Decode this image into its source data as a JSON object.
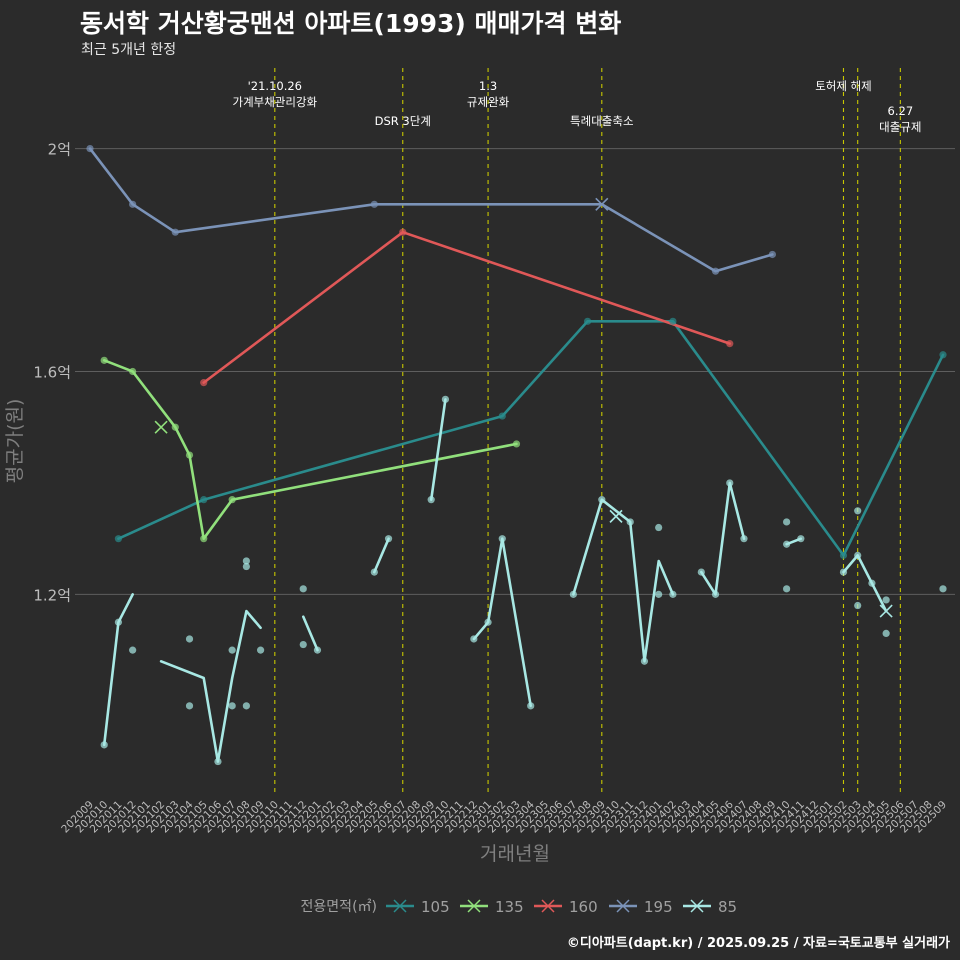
{
  "chart_data": {
    "type": "line",
    "title": "동서학 거산황궁맨션 아파트(1993) 매매가격 변화",
    "subtitle": "최근 5개년 한정",
    "xlabel": "거래년월",
    "ylabel": "평균가(원)",
    "caption": "©디아파트(dapt.kr) / 2025.09.25 / 자료=국토교통부 실거래가",
    "ylim": [
      0.84,
      2.15
    ],
    "y_ticks": [
      {
        "value": 1.2,
        "label": "1.2억"
      },
      {
        "value": 1.6,
        "label": "1.6억"
      },
      {
        "value": 2.0,
        "label": "2억"
      }
    ],
    "categories": [
      "202009",
      "202010",
      "202011",
      "202012",
      "202101",
      "202102",
      "202103",
      "202104",
      "202105",
      "202106",
      "202107",
      "202108",
      "202109",
      "202110",
      "202111",
      "202112",
      "202201",
      "202202",
      "202203",
      "202204",
      "202205",
      "202206",
      "202207",
      "202208",
      "202209",
      "202210",
      "202211",
      "202212",
      "202301",
      "202302",
      "202303",
      "202304",
      "202305",
      "202306",
      "202307",
      "202308",
      "202309",
      "202310",
      "202311",
      "202312",
      "202401",
      "202402",
      "202403",
      "202404",
      "202405",
      "202406",
      "202407",
      "202408",
      "202409",
      "202410",
      "202411",
      "202412",
      "202501",
      "202502",
      "202503",
      "202504",
      "202505",
      "202506",
      "202507",
      "202508",
      "202509"
    ],
    "legend_title": "전용면적(㎡)",
    "series": [
      {
        "name": "105",
        "color": "#2a8b8c",
        "line_segments": [
          [
            [
              "202011",
              1.3
            ],
            [
              "202105",
              1.37
            ],
            [
              "202302",
              1.52
            ],
            [
              "202308",
              1.69
            ],
            [
              "202402",
              1.69
            ],
            [
              "202502",
              1.27
            ],
            [
              "202509",
              1.63
            ]
          ]
        ],
        "points": [
          [
            "202011",
            1.3
          ],
          [
            "202105",
            1.37
          ],
          [
            "202302",
            1.52
          ],
          [
            "202308",
            1.69
          ],
          [
            "202402",
            1.69
          ],
          [
            "202502",
            1.27
          ],
          [
            "202509",
            1.63
          ]
        ],
        "markers": []
      },
      {
        "name": "135",
        "color": "#91e07c",
        "line_segments": [
          [
            [
              "202010",
              1.62
            ],
            [
              "202012",
              1.6
            ],
            [
              "202103",
              1.5
            ],
            [
              "202104",
              1.45
            ],
            [
              "202105",
              1.3
            ],
            [
              "202107",
              1.37
            ],
            [
              "202303",
              1.47
            ]
          ]
        ],
        "points": [
          [
            "202010",
            1.62
          ],
          [
            "202012",
            1.6
          ],
          [
            "202103",
            1.5
          ],
          [
            "202104",
            1.45
          ],
          [
            "202105",
            1.3
          ],
          [
            "202107",
            1.37
          ],
          [
            "202303",
            1.47
          ]
        ],
        "markers": [
          [
            "202102",
            1.5
          ]
        ]
      },
      {
        "name": "160",
        "color": "#e05858",
        "line_segments": [
          [
            [
              "202105",
              1.58
            ],
            [
              "202207",
              1.85
            ],
            [
              "202406",
              1.65
            ]
          ]
        ],
        "points": [
          [
            "202105",
            1.58
          ],
          [
            "202207",
            1.85
          ],
          [
            "202406",
            1.65
          ]
        ],
        "markers": []
      },
      {
        "name": "195",
        "color": "#7b93b8",
        "line_segments": [
          [
            [
              "202009",
              2.0
            ],
            [
              "202012",
              1.9
            ],
            [
              "202103",
              1.85
            ],
            [
              "202205",
              1.9
            ],
            [
              "202309",
              1.9
            ],
            [
              "202405",
              1.78
            ],
            [
              "202409",
              1.81
            ]
          ]
        ],
        "points": [
          [
            "202009",
            2.0
          ],
          [
            "202012",
            1.9
          ],
          [
            "202103",
            1.85
          ],
          [
            "202205",
            1.9
          ],
          [
            "202405",
            1.78
          ],
          [
            "202409",
            1.81
          ]
        ],
        "markers": [
          [
            "202309",
            1.9
          ]
        ]
      },
      {
        "name": "85",
        "color": "#a8e8e4",
        "line_segments": [
          [
            [
              "202010",
              0.93
            ],
            [
              "202011",
              1.15
            ],
            [
              "202012",
              1.2
            ]
          ],
          [
            [
              "202102",
              1.08
            ],
            [
              "202105",
              1.05
            ],
            [
              "202106",
              0.9
            ],
            [
              "202107",
              1.05
            ],
            [
              "202108",
              1.17
            ],
            [
              "202109",
              1.14
            ]
          ],
          [
            [
              "202112",
              1.16
            ],
            [
              "202201",
              1.1
            ]
          ],
          [
            [
              "202205",
              1.24
            ],
            [
              "202206",
              1.3
            ]
          ],
          [
            [
              "202209",
              1.37
            ],
            [
              "202210",
              1.55
            ]
          ],
          [
            [
              "202212",
              1.12
            ],
            [
              "202301",
              1.15
            ],
            [
              "202302",
              1.3
            ],
            [
              "202304",
              1.0
            ]
          ],
          [
            [
              "202307",
              1.2
            ],
            [
              "202309",
              1.37
            ],
            [
              "202311",
              1.33
            ],
            [
              "202312",
              1.08
            ],
            [
              "202401",
              1.26
            ],
            [
              "202402",
              1.2
            ]
          ],
          [
            [
              "202404",
              1.24
            ],
            [
              "202405",
              1.2
            ],
            [
              "202406",
              1.4
            ],
            [
              "202407",
              1.3
            ]
          ],
          [
            [
              "202410",
              1.29
            ],
            [
              "202411",
              1.3
            ]
          ],
          [
            [
              "202502",
              1.24
            ],
            [
              "202503",
              1.27
            ],
            [
              "202504",
              1.22
            ],
            [
              "202505",
              1.17
            ]
          ]
        ],
        "points": [
          [
            "202010",
            0.93
          ],
          [
            "202011",
            1.15
          ],
          [
            "202012",
            1.1
          ],
          [
            "202104",
            1.12
          ],
          [
            "202104",
            1.0
          ],
          [
            "202106",
            0.9
          ],
          [
            "202107",
            1.1
          ],
          [
            "202107",
            1.0
          ],
          [
            "202108",
            1.26
          ],
          [
            "202108",
            1.25
          ],
          [
            "202108",
            1.0
          ],
          [
            "202109",
            1.1
          ],
          [
            "202112",
            1.21
          ],
          [
            "202112",
            1.11
          ],
          [
            "202201",
            1.1
          ],
          [
            "202205",
            1.24
          ],
          [
            "202206",
            1.3
          ],
          [
            "202209",
            1.37
          ],
          [
            "202210",
            1.55
          ],
          [
            "202212",
            1.12
          ],
          [
            "202301",
            1.15
          ],
          [
            "202302",
            1.3
          ],
          [
            "202304",
            1.0
          ],
          [
            "202307",
            1.2
          ],
          [
            "202309",
            1.37
          ],
          [
            "202311",
            1.33
          ],
          [
            "202312",
            1.08
          ],
          [
            "202401",
            1.32
          ],
          [
            "202401",
            1.2
          ],
          [
            "202402",
            1.2
          ],
          [
            "202404",
            1.24
          ],
          [
            "202405",
            1.2
          ],
          [
            "202406",
            1.4
          ],
          [
            "202407",
            1.3
          ],
          [
            "202410",
            1.33
          ],
          [
            "202410",
            1.29
          ],
          [
            "202410",
            1.21
          ],
          [
            "202411",
            1.3
          ],
          [
            "202502",
            1.24
          ],
          [
            "202503",
            1.35
          ],
          [
            "202503",
            1.27
          ],
          [
            "202503",
            1.18
          ],
          [
            "202504",
            1.22
          ],
          [
            "202505",
            1.19
          ],
          [
            "202505",
            1.13
          ],
          [
            "202509",
            1.21
          ]
        ],
        "markers": [
          [
            "202310",
            1.34
          ],
          [
            "202505",
            1.17
          ]
        ]
      }
    ],
    "events": [
      {
        "date": "202110",
        "lines": [
          "'21.10.26",
          "가계부채관리강화"
        ],
        "level": 0
      },
      {
        "date": "202207",
        "lines": [
          "DSR 3단계"
        ],
        "level": 1
      },
      {
        "date": "202301",
        "lines": [
          "1.3",
          "규제완화"
        ],
        "level": 0
      },
      {
        "date": "202309",
        "lines": [
          "특례대출축소"
        ],
        "level": 1
      },
      {
        "date": "202502",
        "lines": [
          "토허제 해제"
        ],
        "level": 0
      },
      {
        "date": "202503",
        "lines": [],
        "level": 0
      },
      {
        "date": "202506",
        "lines": [
          "6.27",
          "대출규제"
        ],
        "level": 2
      }
    ]
  }
}
